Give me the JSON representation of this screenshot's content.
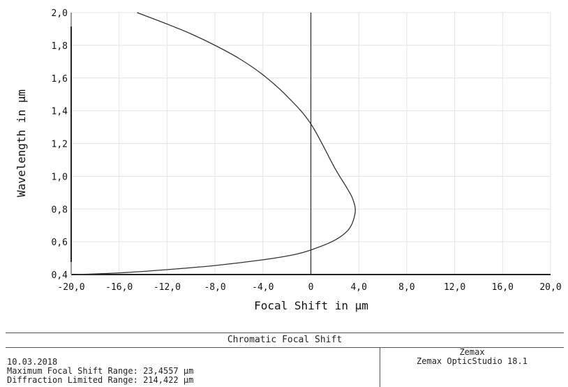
{
  "chart_data": {
    "type": "line",
    "xlabel": "Focal Shift in µm",
    "ylabel": "Wavelength in µm",
    "xlim": [
      -20,
      20
    ],
    "ylim": [
      0.4,
      2.0
    ],
    "x_ticks": [
      "-20,0",
      "-16,0",
      "-12,0",
      "-8,0",
      "-4,0",
      "0",
      "4,0",
      "8,0",
      "12,0",
      "16,0",
      "20,0"
    ],
    "y_ticks": [
      "0,4",
      "0,6",
      "0,8",
      "1,0",
      "1,2",
      "1,4",
      "1,6",
      "1,8",
      "2,0"
    ],
    "grid": true,
    "series": [
      {
        "color": "#333333",
        "x": [
          -19.6,
          -16.0,
          -12.0,
          -8.0,
          -4.0,
          -1.5,
          0.0,
          2.0,
          3.2,
          3.7,
          3.5,
          3.0,
          2.0,
          0.0,
          -2.0,
          -4.0,
          -6.0,
          -8.0,
          -10.0,
          -12.0,
          -14.5
        ],
        "y": [
          0.4,
          0.41,
          0.43,
          0.455,
          0.49,
          0.52,
          0.55,
          0.61,
          0.68,
          0.78,
          0.86,
          0.93,
          1.05,
          1.32,
          1.49,
          1.62,
          1.72,
          1.8,
          1.87,
          1.93,
          2.0
        ]
      }
    ]
  },
  "footer": {
    "title": "Chromatic Focal Shift",
    "date": "10.03.2018",
    "max_range": "Maximum Focal Shift Range: 23,4557 µm",
    "diff_range": "Diffraction Limited Range: 214,422 µm",
    "company": "Zemax",
    "product": "Zemax OpticStudio 18.1"
  }
}
